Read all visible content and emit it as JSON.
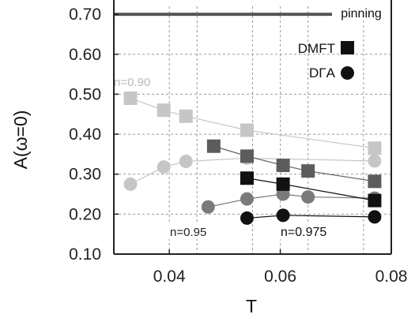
{
  "chart_data": {
    "type": "scatter",
    "xlabel": "T",
    "ylabel": "A(ω=0)",
    "xlim": [
      0.03,
      0.08
    ],
    "ylim": [
      0.1,
      0.72
    ],
    "x_ticks": [
      0.04,
      0.06,
      0.08
    ],
    "x_tick_labels": [
      "0.04",
      "0.06",
      "0.08"
    ],
    "y_ticks": [
      0.1,
      0.2,
      0.3,
      0.4,
      0.5,
      0.6,
      0.7
    ],
    "y_tick_labels": [
      "0.10",
      "0.20",
      "0.30",
      "0.40",
      "0.50",
      "0.60",
      "0.70"
    ],
    "grid": true,
    "legend_placement": "top-right",
    "legend": [
      {
        "label": "DMFT",
        "marker": "square"
      },
      {
        "label": "DΓA",
        "marker": "circle"
      }
    ],
    "reference_line": {
      "y": 0.7,
      "label": "pinning"
    },
    "series": [
      {
        "name": "n=0.90",
        "method": "DMFT",
        "marker": "square",
        "color": "#c6c6c6",
        "x": [
          0.033,
          0.039,
          0.043,
          0.054,
          0.077
        ],
        "y": [
          0.49,
          0.46,
          0.445,
          0.41,
          0.365
        ]
      },
      {
        "name": "n=0.90",
        "method": "DΓA",
        "marker": "circle",
        "color": "#c6c6c6",
        "x": [
          0.033,
          0.039,
          0.043,
          0.054,
          0.077
        ],
        "y": [
          0.275,
          0.318,
          0.332,
          0.34,
          0.333
        ]
      },
      {
        "name": "n=0.95",
        "method": "DMFT",
        "marker": "square",
        "color": "#5c5c5c",
        "x": [
          0.048,
          0.054,
          0.0605,
          0.065,
          0.077
        ],
        "y": [
          0.37,
          0.345,
          0.322,
          0.308,
          0.282
        ]
      },
      {
        "name": "n=0.95",
        "method": "DΓA",
        "marker": "circle",
        "color": "#7a7a7a",
        "x": [
          0.047,
          0.054,
          0.0605,
          0.065,
          0.077
        ],
        "y": [
          0.218,
          0.238,
          0.25,
          0.243,
          0.24
        ]
      },
      {
        "name": "n=0.975",
        "method": "DMFT",
        "marker": "square",
        "color": "#111111",
        "x": [
          0.054,
          0.0605,
          0.077
        ],
        "y": [
          0.29,
          0.275,
          0.234
        ]
      },
      {
        "name": "n=0.975",
        "method": "DΓA",
        "marker": "circle",
        "color": "#111111",
        "x": [
          0.054,
          0.0605,
          0.077
        ],
        "y": [
          0.19,
          0.197,
          0.193
        ]
      }
    ],
    "annotations": [
      {
        "text": "n=0.90",
        "color": "#b8b8b8"
      },
      {
        "text": "n=0.95",
        "color": "#222222"
      },
      {
        "text": "n=0.975",
        "color": "#111111"
      }
    ]
  }
}
